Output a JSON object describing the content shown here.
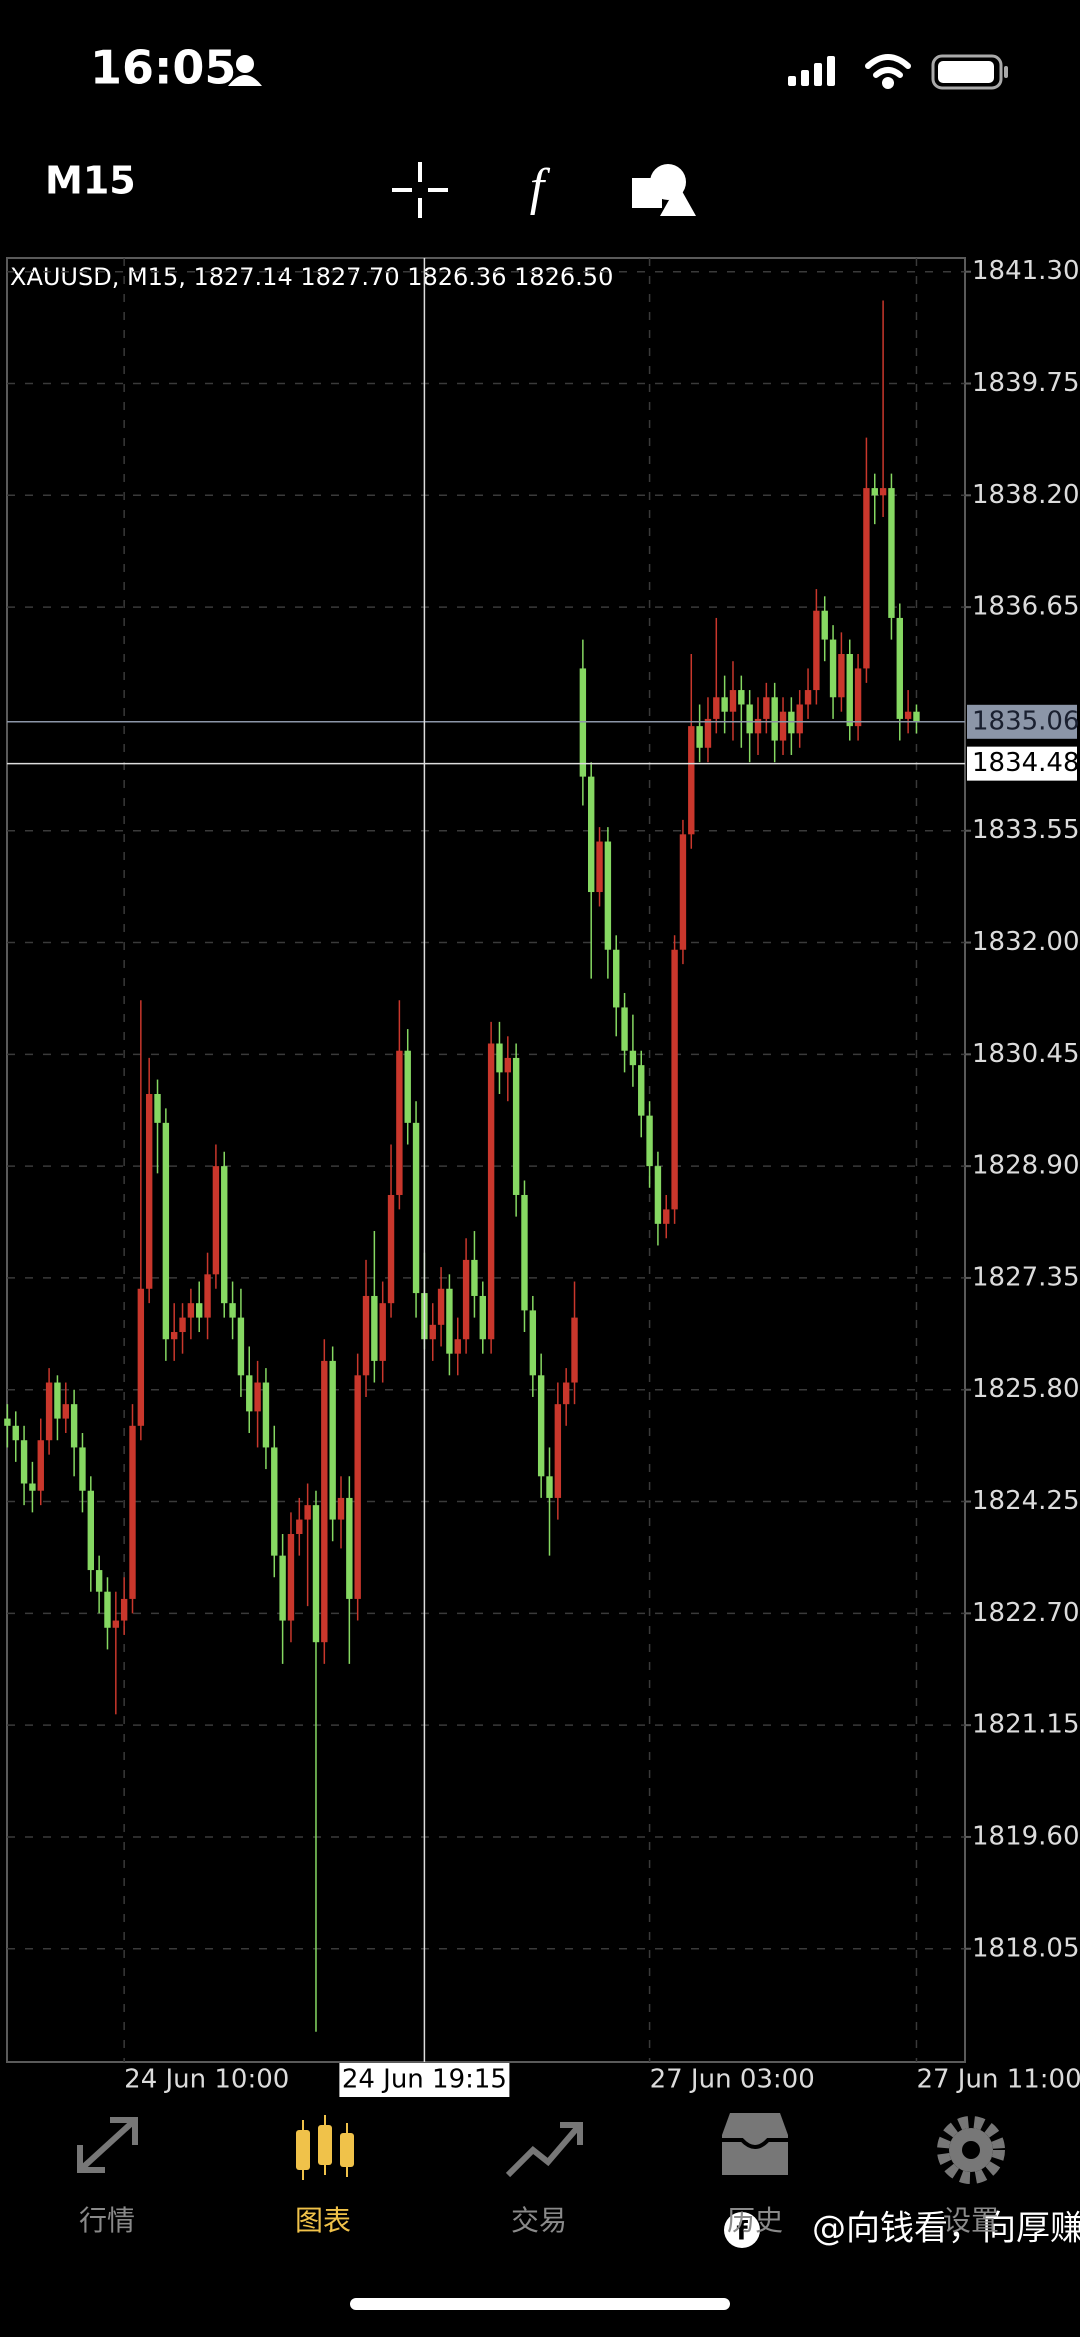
{
  "status_bar": {
    "time": "16:05"
  },
  "toolbar": {
    "timeframe": "M15"
  },
  "chart": {
    "type": "candlestick",
    "info": "XAUUSD, M15, 1827.14 1827.70 1826.36 1826.50",
    "ylim": [
      1816.48,
      1841.49
    ],
    "yticks": [
      {
        "value": 1841.3,
        "label": "1841.30"
      },
      1839.75,
      {
        "value": 1838.2,
        "label": "1838.20"
      },
      1836.65,
      1833.55,
      {
        "value": 1832.0,
        "label": "1832.00"
      },
      1830.45,
      {
        "value": 1828.9,
        "label": "1828.90"
      },
      1827.35,
      {
        "value": 1825.8,
        "label": "1825.80"
      },
      1824.25,
      {
        "value": 1822.7,
        "label": "1822.70"
      },
      1821.15,
      {
        "value": 1819.6,
        "label": "1819.60"
      },
      1818.05
    ],
    "xticks": [
      {
        "value": 14,
        "label": "24 Jun 10:00"
      },
      {
        "value": 77,
        "label": "27 Jun 03:00"
      },
      {
        "value": 109,
        "label": "27 Jun 11:00"
      }
    ],
    "grid": true,
    "bid": {
      "value": 1835.06
    },
    "crosshair": {
      "index": 50,
      "time": "24 Jun 19:15",
      "price": 1834.48
    },
    "up_color": "#c9372c",
    "down_color": "#86d862",
    "candles": [
      [
        1825.4,
        1825.6,
        1825.0,
        1825.3
      ],
      [
        1825.3,
        1825.5,
        1824.8,
        1825.1
      ],
      [
        1825.1,
        1825.3,
        1824.2,
        1824.5
      ],
      [
        1824.5,
        1824.8,
        1824.1,
        1824.4
      ],
      [
        1824.4,
        1825.4,
        1824.2,
        1825.1
      ],
      [
        1825.1,
        1826.1,
        1824.9,
        1825.9
      ],
      [
        1825.9,
        1826.0,
        1825.1,
        1825.4
      ],
      [
        1825.4,
        1825.9,
        1825.2,
        1825.6
      ],
      [
        1825.6,
        1825.8,
        1824.6,
        1825.0
      ],
      [
        1825.0,
        1825.2,
        1824.1,
        1824.4
      ],
      [
        1824.4,
        1824.6,
        1823.0,
        1823.3
      ],
      [
        1823.3,
        1823.5,
        1822.7,
        1823.0
      ],
      [
        1823.0,
        1823.2,
        1822.2,
        1822.5
      ],
      [
        1822.5,
        1823.0,
        1821.3,
        1822.6
      ],
      [
        1822.6,
        1823.2,
        1822.4,
        1822.9
      ],
      [
        1822.9,
        1825.6,
        1822.7,
        1825.3
      ],
      [
        1825.3,
        1831.2,
        1825.1,
        1827.2
      ],
      [
        1827.2,
        1830.4,
        1827.0,
        1829.9
      ],
      [
        1829.9,
        1830.1,
        1828.8,
        1829.5
      ],
      [
        1829.5,
        1829.7,
        1826.2,
        1826.5
      ],
      [
        1826.5,
        1827.0,
        1826.2,
        1826.6
      ],
      [
        1826.6,
        1827.0,
        1826.3,
        1826.8
      ],
      [
        1826.8,
        1827.2,
        1826.5,
        1827.0
      ],
      [
        1827.0,
        1827.3,
        1826.6,
        1826.8
      ],
      [
        1826.8,
        1827.7,
        1826.5,
        1827.4
      ],
      [
        1827.4,
        1829.2,
        1827.2,
        1828.9
      ],
      [
        1828.9,
        1829.1,
        1826.8,
        1827.0
      ],
      [
        1827.0,
        1827.3,
        1826.5,
        1826.8
      ],
      [
        1826.8,
        1827.2,
        1825.7,
        1826.0
      ],
      [
        1826.0,
        1826.4,
        1825.2,
        1825.5
      ],
      [
        1825.5,
        1826.2,
        1825.0,
        1825.9
      ],
      [
        1825.9,
        1826.1,
        1824.7,
        1825.0
      ],
      [
        1825.0,
        1825.3,
        1823.2,
        1823.5
      ],
      [
        1823.5,
        1823.8,
        1822.0,
        1822.6
      ],
      [
        1822.6,
        1824.1,
        1822.3,
        1823.8
      ],
      [
        1823.8,
        1824.3,
        1823.5,
        1824.0
      ],
      [
        1824.0,
        1824.5,
        1822.8,
        1824.2
      ],
      [
        1824.2,
        1824.4,
        1816.9,
        1822.3
      ],
      [
        1822.3,
        1826.5,
        1822.0,
        1826.2
      ],
      [
        1826.2,
        1826.4,
        1823.7,
        1824.0
      ],
      [
        1824.0,
        1824.6,
        1823.6,
        1824.3
      ],
      [
        1824.3,
        1824.6,
        1822.0,
        1822.9
      ],
      [
        1822.9,
        1826.3,
        1822.6,
        1826.0
      ],
      [
        1826.0,
        1827.6,
        1825.7,
        1827.1
      ],
      [
        1827.1,
        1828.0,
        1825.9,
        1826.2
      ],
      [
        1826.2,
        1827.3,
        1825.9,
        1827.0
      ],
      [
        1827.0,
        1829.2,
        1826.8,
        1828.5
      ],
      [
        1828.5,
        1831.2,
        1828.3,
        1830.5
      ],
      [
        1830.5,
        1830.8,
        1829.2,
        1829.5
      ],
      [
        1829.5,
        1829.8,
        1826.8,
        1827.14
      ],
      [
        1827.14,
        1827.7,
        1826.36,
        1826.5
      ],
      [
        1826.5,
        1827.0,
        1826.2,
        1826.7
      ],
      [
        1826.7,
        1827.5,
        1826.4,
        1827.2
      ],
      [
        1827.2,
        1827.4,
        1826.0,
        1826.3
      ],
      [
        1826.3,
        1826.8,
        1826.0,
        1826.5
      ],
      [
        1826.5,
        1827.9,
        1826.3,
        1827.6
      ],
      [
        1827.6,
        1828.0,
        1826.8,
        1827.1
      ],
      [
        1827.1,
        1827.3,
        1826.3,
        1826.5
      ],
      [
        1826.5,
        1830.9,
        1826.3,
        1830.6
      ],
      [
        1830.6,
        1830.9,
        1829.9,
        1830.2
      ],
      [
        1830.2,
        1830.7,
        1829.8,
        1830.4
      ],
      [
        1830.4,
        1830.6,
        1828.2,
        1828.5
      ],
      [
        1828.5,
        1828.7,
        1826.6,
        1826.9
      ],
      [
        1826.9,
        1827.1,
        1825.7,
        1826.0
      ],
      [
        1826.0,
        1826.3,
        1824.3,
        1824.6
      ],
      [
        1824.6,
        1825.0,
        1823.5,
        1824.3
      ],
      [
        1824.3,
        1825.9,
        1824.0,
        1825.6
      ],
      [
        1825.6,
        1826.1,
        1825.3,
        1825.9
      ],
      [
        1825.9,
        1827.3,
        1825.6,
        1826.8
      ],
      [
        1835.8,
        1836.2,
        1833.9,
        1834.3
      ],
      [
        1834.3,
        1834.5,
        1831.5,
        1832.7
      ],
      [
        1832.7,
        1833.6,
        1832.5,
        1833.4
      ],
      [
        1833.4,
        1833.6,
        1831.5,
        1831.9
      ],
      [
        1831.9,
        1832.1,
        1830.7,
        1831.1
      ],
      [
        1831.1,
        1831.3,
        1830.2,
        1830.5
      ],
      [
        1830.5,
        1831.0,
        1830.0,
        1830.3
      ],
      [
        1830.3,
        1830.5,
        1829.3,
        1829.6
      ],
      [
        1829.6,
        1829.8,
        1828.6,
        1828.9
      ],
      [
        1828.9,
        1829.1,
        1827.8,
        1828.1
      ],
      [
        1828.1,
        1828.5,
        1827.9,
        1828.3
      ],
      [
        1828.3,
        1832.1,
        1828.1,
        1831.9
      ],
      [
        1831.9,
        1833.7,
        1831.7,
        1833.5
      ],
      [
        1833.5,
        1836.0,
        1833.3,
        1835.0
      ],
      [
        1835.0,
        1835.3,
        1834.5,
        1834.7
      ],
      [
        1834.7,
        1835.4,
        1834.5,
        1835.1
      ],
      [
        1835.1,
        1836.5,
        1834.9,
        1835.4
      ],
      [
        1835.4,
        1835.7,
        1834.9,
        1835.2
      ],
      [
        1835.2,
        1835.9,
        1834.8,
        1835.5
      ],
      [
        1835.5,
        1835.7,
        1834.7,
        1835.3
      ],
      [
        1835.3,
        1835.5,
        1834.5,
        1834.9
      ],
      [
        1834.9,
        1835.4,
        1834.6,
        1835.1
      ],
      [
        1835.1,
        1835.6,
        1834.9,
        1835.4
      ],
      [
        1835.4,
        1835.6,
        1834.5,
        1834.8
      ],
      [
        1834.8,
        1835.4,
        1834.6,
        1835.2
      ],
      [
        1835.2,
        1835.4,
        1834.6,
        1834.9
      ],
      [
        1834.9,
        1835.5,
        1834.7,
        1835.3
      ],
      [
        1835.3,
        1835.8,
        1835.1,
        1835.5
      ],
      [
        1835.5,
        1836.9,
        1835.3,
        1836.6
      ],
      [
        1836.6,
        1836.8,
        1835.9,
        1836.2
      ],
      [
        1836.2,
        1836.4,
        1835.1,
        1835.4
      ],
      [
        1835.4,
        1836.3,
        1835.2,
        1836.0
      ],
      [
        1836.0,
        1836.2,
        1834.8,
        1835.0
      ],
      [
        1835.0,
        1836.0,
        1834.8,
        1835.8
      ],
      [
        1835.8,
        1839.0,
        1835.6,
        1838.3
      ],
      [
        1838.3,
        1838.5,
        1837.8,
        1838.2
      ],
      [
        1838.2,
        1840.9,
        1837.9,
        1838.3
      ],
      [
        1838.3,
        1838.5,
        1836.2,
        1836.5
      ],
      [
        1836.5,
        1836.7,
        1834.8,
        1835.1
      ],
      [
        1835.1,
        1835.5,
        1834.9,
        1835.2
      ],
      [
        1835.2,
        1835.3,
        1834.9,
        1835.06
      ]
    ]
  },
  "tabs": [
    {
      "label": "行情"
    },
    {
      "label": "图表"
    },
    {
      "label": "交易"
    },
    {
      "label": "历史"
    },
    {
      "label": "设置"
    }
  ],
  "active_tab": 1,
  "watermark": "@向钱看，向厚赚"
}
